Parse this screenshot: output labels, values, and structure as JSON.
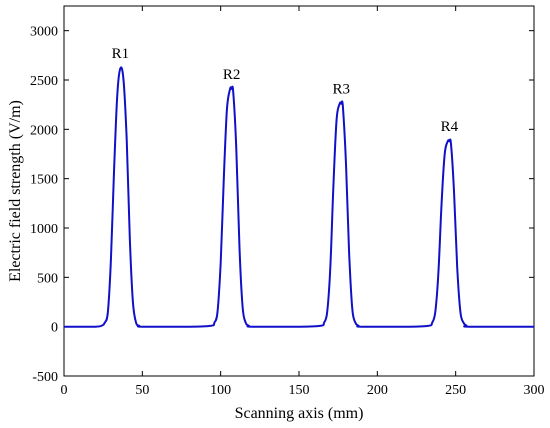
{
  "chart_data": {
    "type": "line",
    "title": "",
    "xlabel": "Scanning axis (mm)",
    "ylabel": "Electric field strength (V/m)",
    "xlim": [
      0,
      300
    ],
    "ylim": [
      -500,
      3250
    ],
    "xticks": [
      0,
      50,
      100,
      150,
      200,
      250,
      300
    ],
    "yticks": [
      -500,
      0,
      500,
      1000,
      1500,
      2000,
      2500,
      3000
    ],
    "grid": false,
    "line_color": "#1010c8",
    "peaks": [
      {
        "label": "R1",
        "x": 36,
        "y": 2620
      },
      {
        "label": "R2",
        "x": 107,
        "y": 2410
      },
      {
        "label": "R3",
        "x": 177,
        "y": 2260
      },
      {
        "label": "R4",
        "x": 246,
        "y": 1880
      }
    ],
    "series": [
      {
        "x": [
          0,
          20,
          24,
          26,
          28,
          30,
          32,
          34,
          36,
          38,
          40,
          42,
          44,
          46,
          48,
          50,
          80,
          94,
          96,
          98,
          100,
          102,
          104,
          106,
          107,
          108,
          110,
          112,
          114,
          116,
          118,
          120,
          150,
          164,
          166,
          168,
          170,
          172,
          174,
          176,
          177,
          178,
          180,
          182,
          184,
          186,
          188,
          190,
          220,
          233,
          235,
          237,
          239,
          241,
          243,
          245,
          246,
          247,
          249,
          251,
          253,
          255,
          257,
          259,
          300
        ],
        "y": [
          0,
          0,
          10,
          40,
          150,
          700,
          1600,
          2350,
          2620,
          2500,
          1900,
          900,
          250,
          40,
          10,
          0,
          0,
          10,
          40,
          150,
          650,
          1500,
          2200,
          2410,
          2410,
          2380,
          1800,
          800,
          200,
          40,
          10,
          0,
          0,
          10,
          40,
          150,
          600,
          1450,
          2100,
          2260,
          2260,
          2230,
          1650,
          750,
          180,
          40,
          10,
          0,
          0,
          10,
          40,
          150,
          550,
          1250,
          1750,
          1880,
          1880,
          1850,
          1350,
          600,
          150,
          40,
          10,
          0,
          0
        ]
      }
    ]
  }
}
